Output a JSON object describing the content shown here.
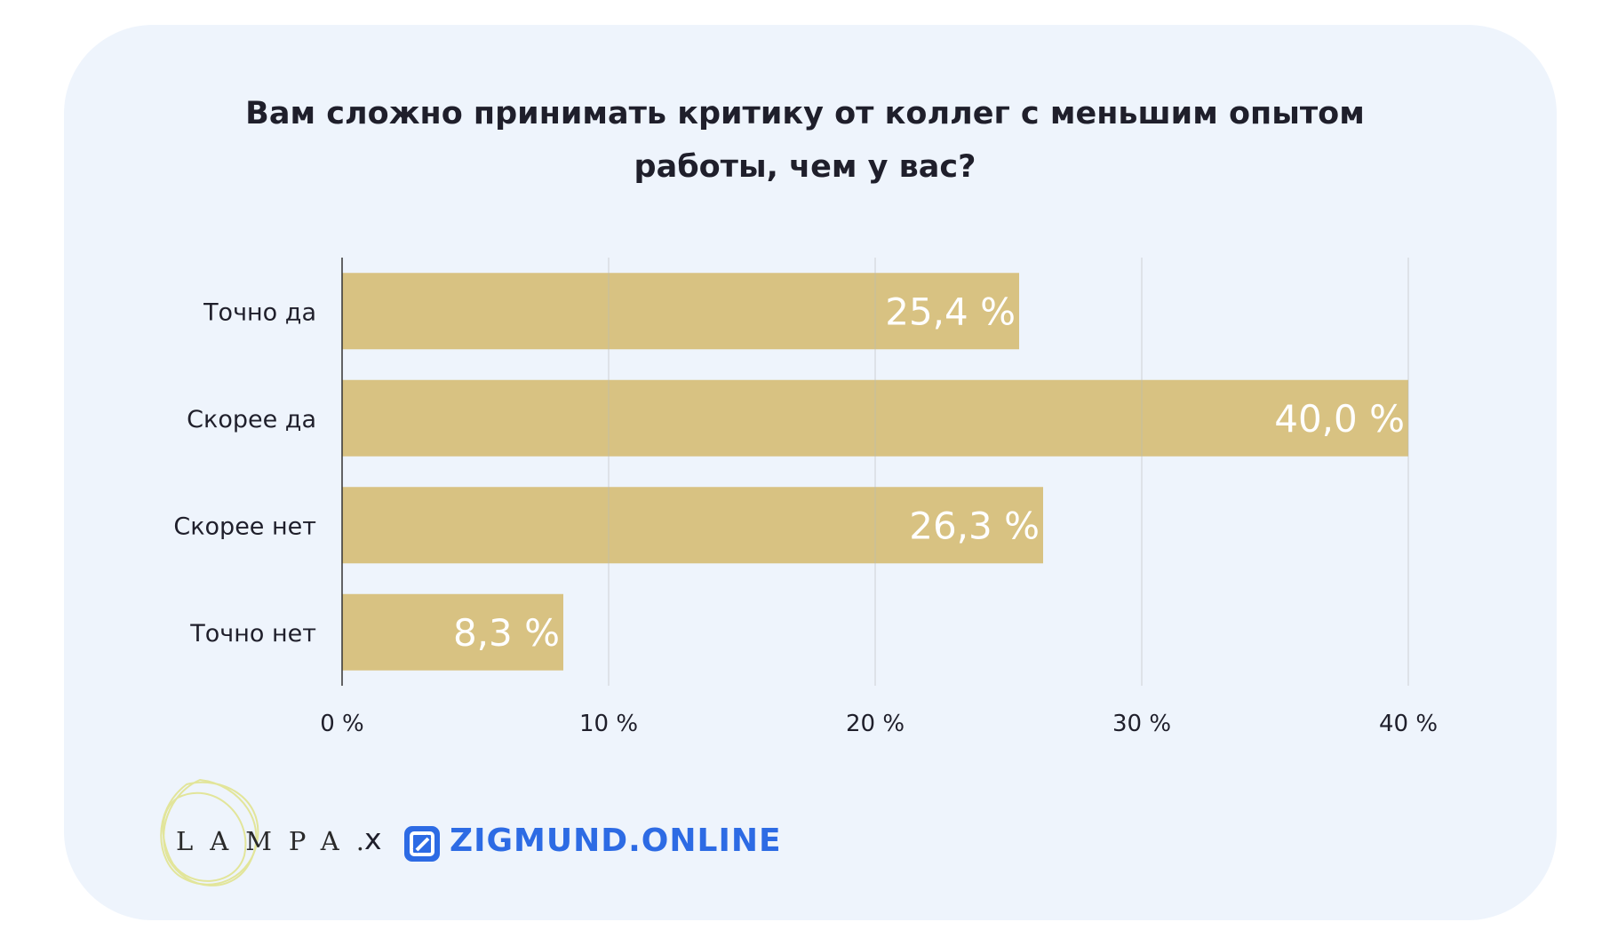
{
  "title_line1": "Вам сложно принимать критику от коллег с меньшим опытом",
  "title_line2": "работы, чем у вас?",
  "chart_data": {
    "type": "bar",
    "orientation": "horizontal",
    "categories": [
      "Точно да",
      "Скорее да",
      "Скорее нет",
      "Точно нет"
    ],
    "values": [
      25.4,
      40.0,
      26.3,
      8.3
    ],
    "value_labels": [
      "25,4 %",
      "40,0 %",
      "26,3 %",
      "8,3 %"
    ],
    "xlim": [
      0,
      40
    ],
    "ticks": [
      0,
      10,
      20,
      30,
      40
    ],
    "tick_labels": [
      "0 %",
      "10 %",
      "20 %",
      "30 %",
      "40 %"
    ],
    "grid": true,
    "bar_color": "#d8c282"
  },
  "footer": {
    "brand1": "LAMPA.",
    "separator": "x",
    "brand2": "ZIGMUND.ONLINE",
    "brand2_color": "#2d6be4",
    "logo_outline_color": "#e4e6a0"
  }
}
